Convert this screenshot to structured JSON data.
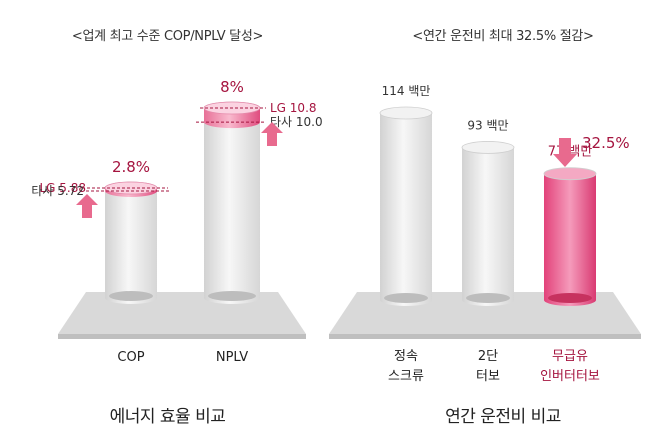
{
  "colors": {
    "accent": "#a5143f",
    "highlight_pink": "#e0457a",
    "arrow_pink": "#e86a8e",
    "cylinder_gray": "#e8e8e8",
    "platform": "#d9d9d9"
  },
  "chart_data": [
    {
      "type": "bar",
      "title": "<업계 최고 수준 COP/NPLV 달성>",
      "caption": "에너지 효율 비교",
      "categories": [
        "COP",
        "NPLV"
      ],
      "series": [
        {
          "name": "타사",
          "values": [
            5.72,
            10.0
          ]
        },
        {
          "name": "LG",
          "values": [
            5.88,
            10.8
          ]
        }
      ],
      "competitor_labels": [
        "타사 5.72",
        "타사 10.0"
      ],
      "lg_labels": [
        "LG 5.88",
        "LG 10.8"
      ],
      "improvements": [
        "2.8%",
        "8%"
      ],
      "ylim_per_bar": [
        [
          0,
          5.88
        ],
        [
          0,
          10.8
        ]
      ]
    },
    {
      "type": "bar",
      "title": "<연간 운전비 최대 32.5% 절감>",
      "caption": "연간 운전비 비교",
      "categories": [
        "정속 스크류",
        "2단 터보",
        "무급유 인버터터보"
      ],
      "category_lines": [
        [
          "정속",
          "스크류"
        ],
        [
          "2단",
          "터보"
        ],
        [
          "무급유",
          "인버터터보"
        ]
      ],
      "values": [
        114,
        93,
        77
      ],
      "unit": "백만",
      "data_labels": [
        "114 백만",
        "93 백만",
        "77 백만"
      ],
      "highlight_index": 2,
      "reduction": "32.5%",
      "ylim": [
        0,
        114
      ]
    }
  ]
}
